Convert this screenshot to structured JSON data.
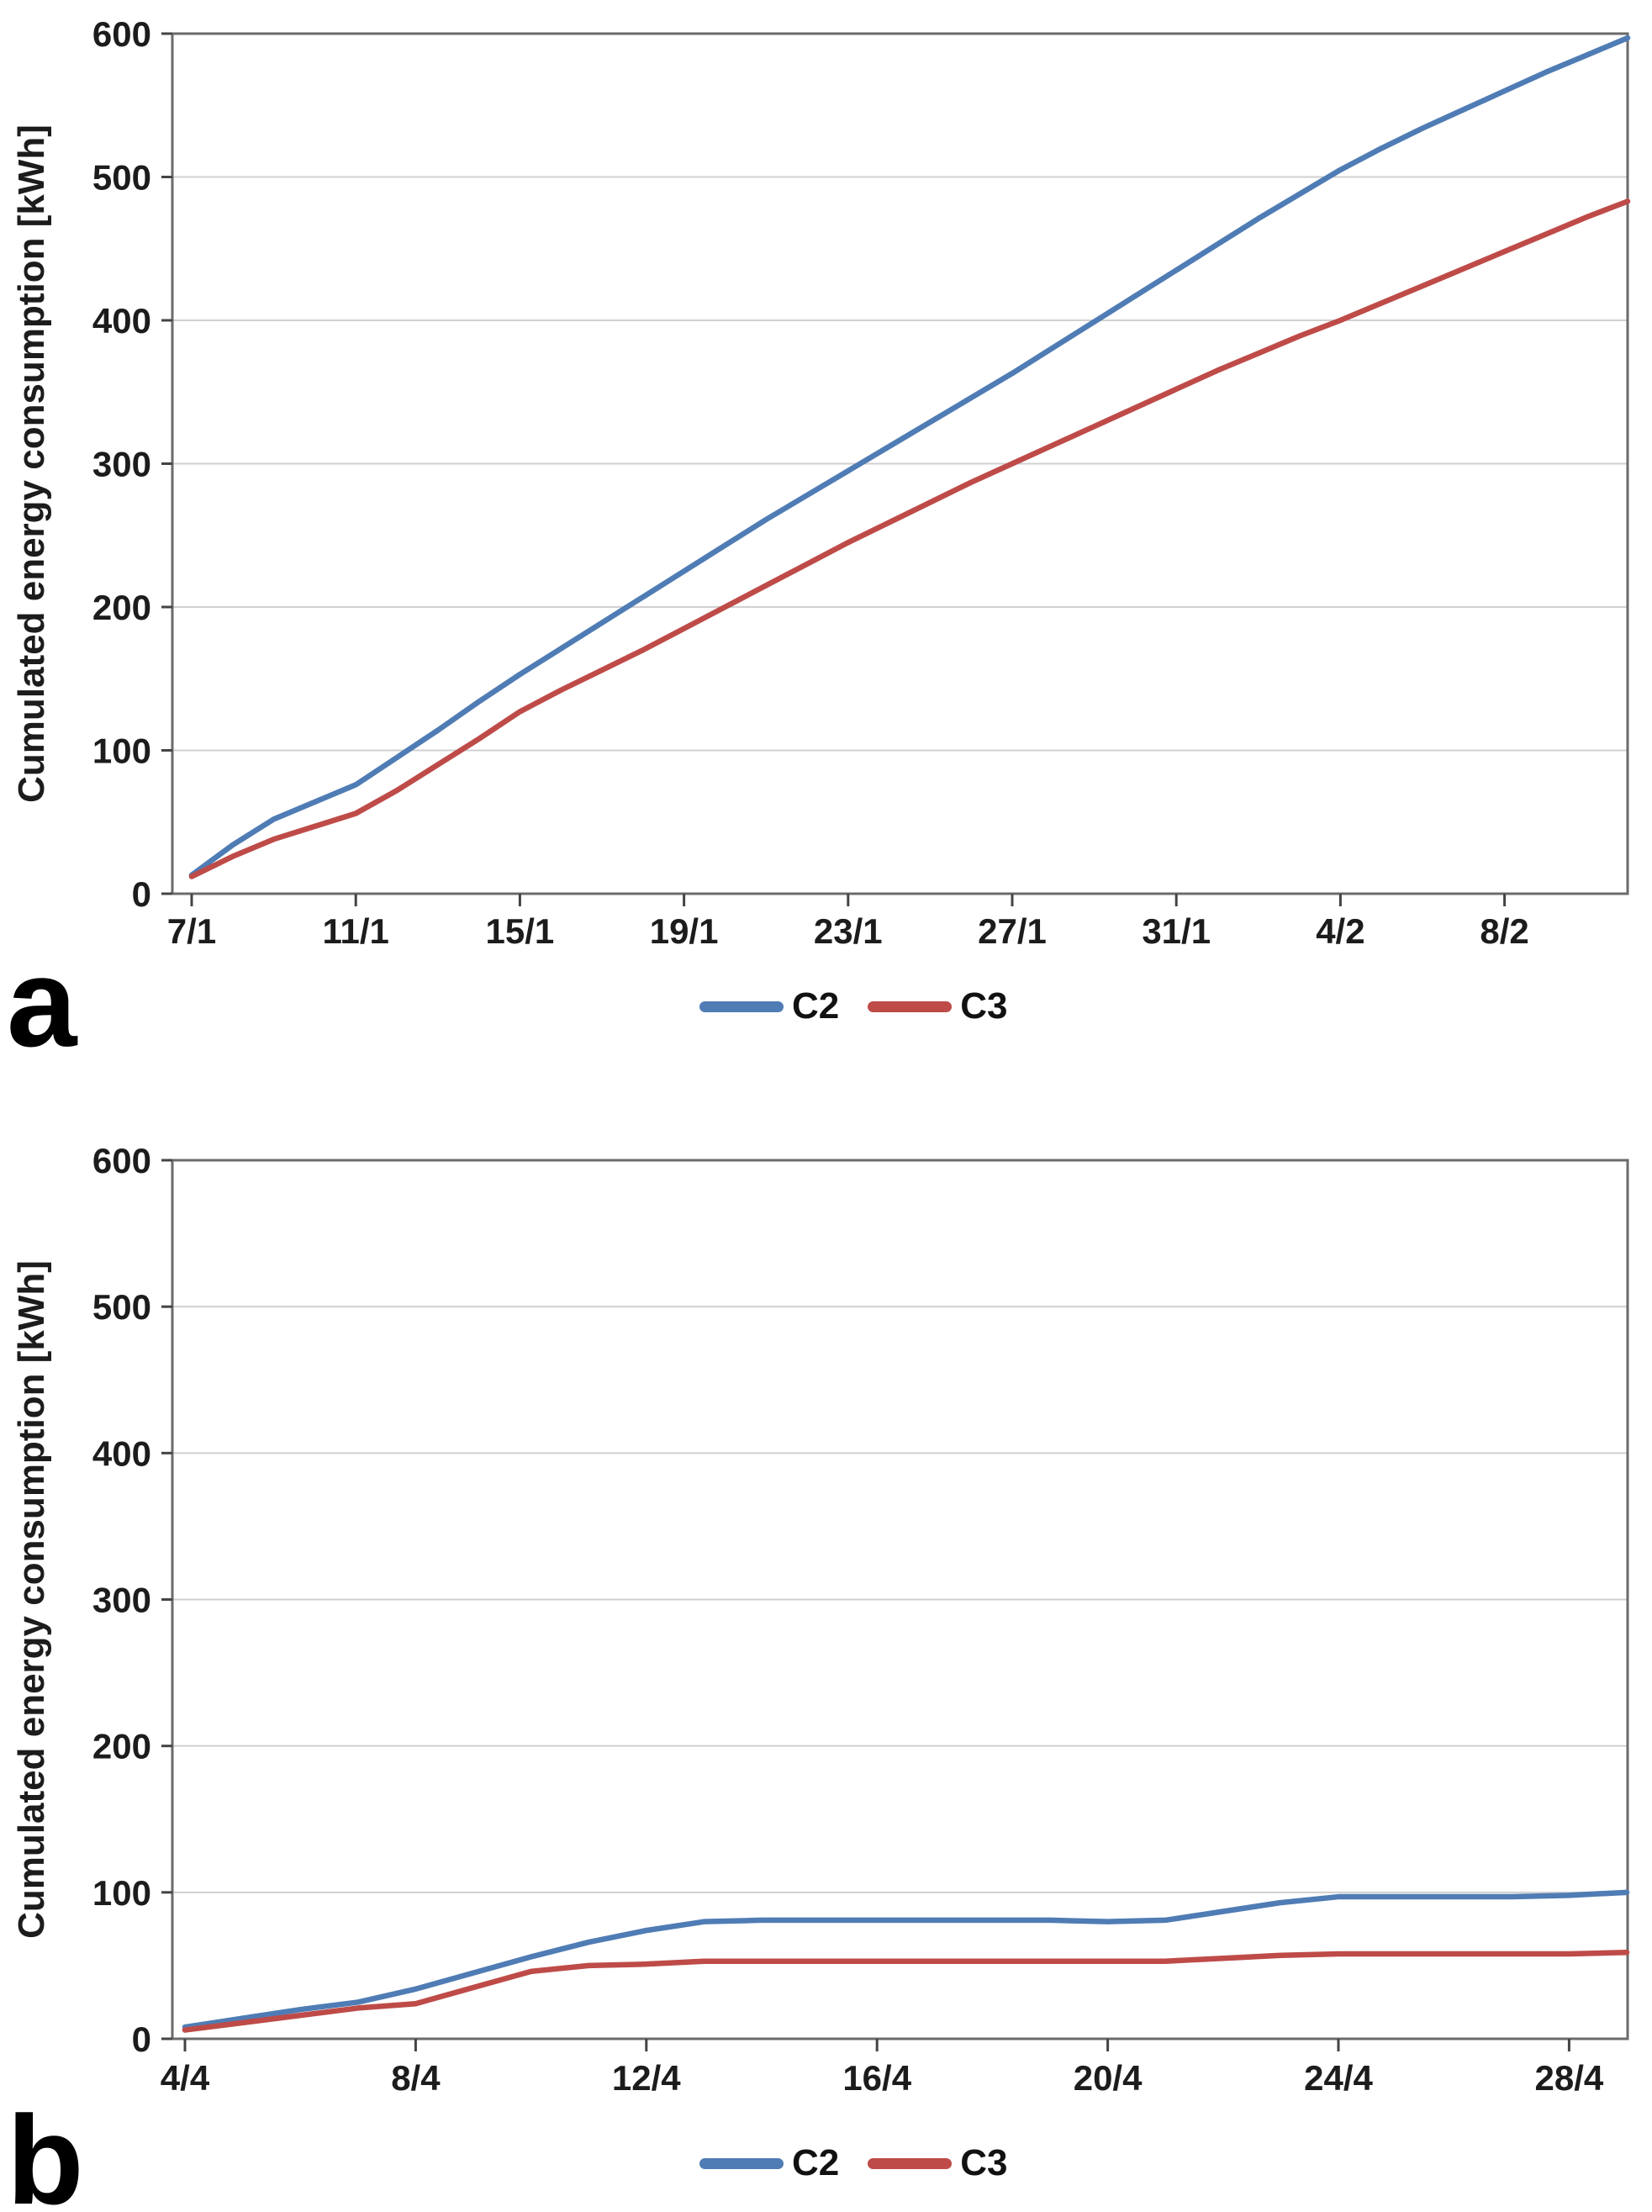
{
  "figure": {
    "panels": [
      {
        "letter": "a"
      },
      {
        "letter": "b"
      }
    ]
  },
  "chart_data": [
    {
      "type": "line",
      "title": "",
      "xlabel": "",
      "ylabel": "Cumulated energy consumption [kWh]",
      "ylim": [
        0,
        600
      ],
      "ytick_step": 100,
      "ytick_labels": [
        "0",
        "100",
        "200",
        "300",
        "400",
        "500",
        "600"
      ],
      "grid": true,
      "legend_position": "bottom-center",
      "x": [
        "7/1",
        "8/1",
        "9/1",
        "10/1",
        "11/1",
        "12/1",
        "13/1",
        "14/1",
        "15/1",
        "16/1",
        "17/1",
        "18/1",
        "19/1",
        "20/1",
        "21/1",
        "22/1",
        "23/1",
        "24/1",
        "25/1",
        "26/1",
        "27/1",
        "28/1",
        "29/1",
        "30/1",
        "31/1",
        "1/2",
        "2/2",
        "3/2",
        "4/2",
        "5/2",
        "6/2",
        "7/2",
        "8/2",
        "9/2",
        "10/2",
        "11/2"
      ],
      "x_tick_labels": [
        "7/1",
        "11/1",
        "15/1",
        "19/1",
        "23/1",
        "27/1",
        "31/1",
        "4/2",
        "8/2"
      ],
      "series": [
        {
          "name": "C2",
          "color": "#4F7CB4",
          "values": [
            13,
            34,
            52,
            64,
            76,
            95,
            114,
            134,
            153,
            171,
            189,
            207,
            225,
            243,
            261,
            278,
            295,
            312,
            329,
            346,
            363,
            381,
            399,
            417,
            435,
            453,
            471,
            488,
            505,
            520,
            534,
            547,
            560,
            573,
            585,
            597
          ]
        },
        {
          "name": "C3",
          "color": "#BE4B48",
          "values": [
            12,
            26,
            38,
            47,
            56,
            72,
            90,
            108,
            127,
            142,
            156,
            170,
            185,
            200,
            215,
            230,
            245,
            259,
            273,
            287,
            300,
            313,
            326,
            339,
            352,
            365,
            377,
            389,
            400,
            412,
            424,
            436,
            448,
            460,
            472,
            483
          ]
        }
      ]
    },
    {
      "type": "line",
      "title": "",
      "xlabel": "",
      "ylabel": "Cumulated energy consumption [kWh]",
      "ylim": [
        0,
        600
      ],
      "ytick_step": 100,
      "ytick_labels": [
        "0",
        "100",
        "200",
        "300",
        "400",
        "500",
        "600"
      ],
      "grid": true,
      "legend_position": "bottom-center",
      "x": [
        "4/4",
        "5/4",
        "6/4",
        "7/4",
        "8/4",
        "9/4",
        "10/4",
        "11/4",
        "12/4",
        "13/4",
        "14/4",
        "15/4",
        "16/4",
        "17/4",
        "18/4",
        "19/4",
        "20/4",
        "21/4",
        "22/4",
        "23/4",
        "24/4",
        "25/4",
        "26/4",
        "27/4",
        "28/4",
        "29/4"
      ],
      "x_tick_labels": [
        "4/4",
        "8/4",
        "12/4",
        "16/4",
        "20/4",
        "24/4",
        "28/4"
      ],
      "series": [
        {
          "name": "C2",
          "color": "#4F7CB4",
          "values": [
            8,
            14,
            20,
            25,
            34,
            45,
            56,
            66,
            74,
            80,
            81,
            81,
            81,
            81,
            81,
            81,
            80,
            81,
            87,
            93,
            97,
            97,
            97,
            97,
            98,
            100
          ]
        },
        {
          "name": "C3",
          "color": "#BE4B48",
          "values": [
            6,
            11,
            16,
            21,
            24,
            35,
            46,
            50,
            51,
            53,
            53,
            53,
            53,
            53,
            53,
            53,
            53,
            53,
            55,
            57,
            58,
            58,
            58,
            58,
            58,
            59
          ]
        }
      ]
    }
  ],
  "style": {
    "grid_color": "#d0d0d0",
    "axis_color": "#6b6b6b",
    "tick_color": "#444444",
    "text_color": "#1c1c1c"
  }
}
